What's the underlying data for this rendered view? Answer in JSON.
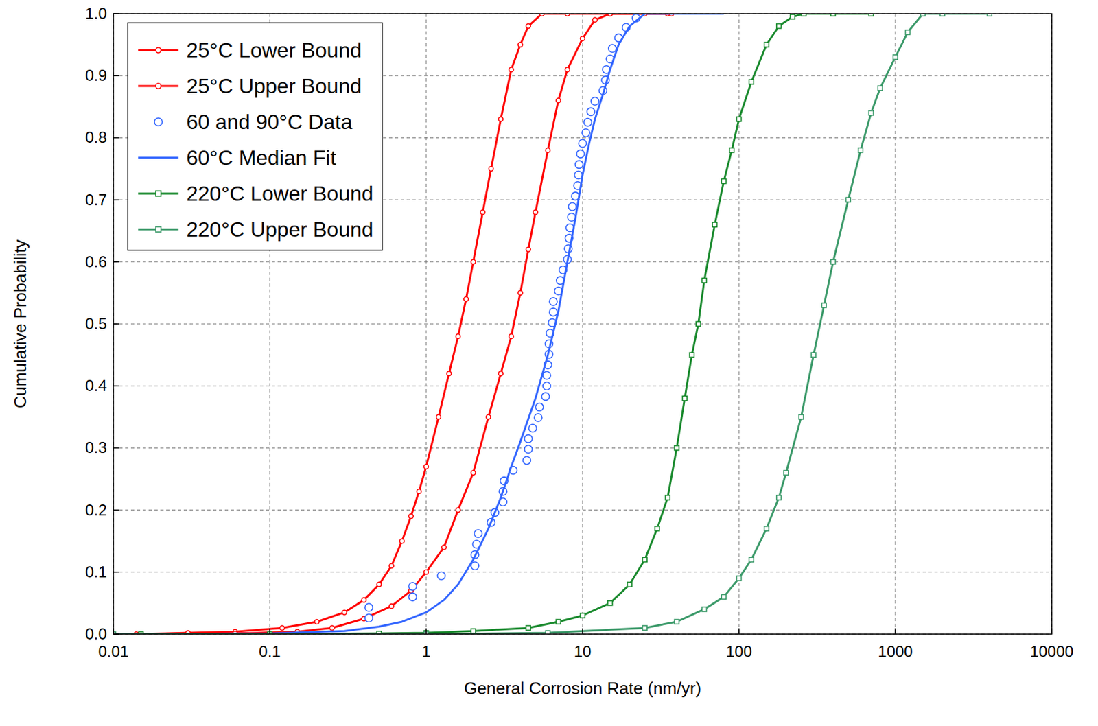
{
  "chart_data": {
    "type": "line",
    "x_label": "General Corrosion Rate (nm/yr)",
    "y_label": "Cumulative Probability",
    "log": "x",
    "grid": true,
    "legend": "top-left",
    "xlim": [
      0.01,
      10000
    ],
    "ylim": [
      0,
      1
    ],
    "xticks": [
      0.01,
      0.1,
      1,
      10,
      100,
      1000,
      10000
    ],
    "yticks": [
      {
        "value": 0,
        "label": "0.0"
      },
      0.1,
      0.2,
      0.3,
      0.4,
      0.5,
      0.6,
      0.7,
      0.8,
      0.9,
      {
        "value": 1,
        "label": "1.0"
      }
    ],
    "series": [
      {
        "name": "25°C Lower Bound",
        "type": "line",
        "color": "#ff0000",
        "marker": "circle",
        "line_style": "solid",
        "x": [
          0.014,
          0.03,
          0.06,
          0.12,
          0.2,
          0.3,
          0.4,
          0.5,
          0.6,
          0.7,
          0.8,
          0.9,
          1.0,
          1.2,
          1.4,
          1.6,
          1.8,
          2.0,
          2.3,
          2.6,
          3.0,
          3.5,
          4.0,
          4.5,
          5.5,
          8,
          15,
          35
        ],
        "values": [
          0,
          0.002,
          0.004,
          0.01,
          0.02,
          0.035,
          0.055,
          0.08,
          0.11,
          0.15,
          0.19,
          0.23,
          0.27,
          0.35,
          0.42,
          0.48,
          0.54,
          0.6,
          0.68,
          0.75,
          0.83,
          0.91,
          0.95,
          0.98,
          1.0,
          1.0,
          1.0,
          1.0
        ]
      },
      {
        "name": "25°C Upper Bound",
        "type": "line",
        "color": "#ff0000",
        "marker": "circle",
        "line_style": "solid",
        "x": [
          0.06,
          0.15,
          0.25,
          0.4,
          0.6,
          0.8,
          1.0,
          1.3,
          1.6,
          2.0,
          2.5,
          3.0,
          3.5,
          4.0,
          4.5,
          5.0,
          6.0,
          7.0,
          8.0,
          10,
          12,
          15,
          25,
          37
        ],
        "values": [
          0.001,
          0.004,
          0.01,
          0.025,
          0.045,
          0.07,
          0.1,
          0.14,
          0.2,
          0.26,
          0.35,
          0.42,
          0.48,
          0.55,
          0.62,
          0.68,
          0.78,
          0.86,
          0.91,
          0.96,
          0.99,
          1.0,
          1.0,
          1.0
        ]
      },
      {
        "name": "60 and 90°C Data",
        "type": "scatter",
        "color": "#3366ff",
        "marker": "circle",
        "line_style": "none",
        "x": [
          0.43,
          0.43,
          0.82,
          0.82,
          1.25,
          2.05,
          2.05,
          2.1,
          2.15,
          2.6,
          2.75,
          3.1,
          3.1,
          3.15,
          3.6,
          4.4,
          4.5,
          4.5,
          4.8,
          5.2,
          5.3,
          5.8,
          5.9,
          5.9,
          6.0,
          6.1,
          6.1,
          6.2,
          6.4,
          6.5,
          6.5,
          7.0,
          7.2,
          7.5,
          8.0,
          8.1,
          8.2,
          8.3,
          8.5,
          8.6,
          9.0,
          9.3,
          9.4,
          9.5,
          9.7,
          10.0,
          10.5,
          10.8,
          11.3,
          12,
          13.5,
          14,
          14.2,
          15,
          15.5,
          17,
          19,
          22
        ],
        "values": [
          0.026,
          0.043,
          0.06,
          0.077,
          0.094,
          0.11,
          0.128,
          0.145,
          0.162,
          0.18,
          0.196,
          0.213,
          0.23,
          0.247,
          0.264,
          0.28,
          0.298,
          0.315,
          0.332,
          0.349,
          0.366,
          0.383,
          0.4,
          0.417,
          0.434,
          0.451,
          0.468,
          0.485,
          0.502,
          0.519,
          0.536,
          0.553,
          0.57,
          0.587,
          0.604,
          0.621,
          0.638,
          0.655,
          0.672,
          0.689,
          0.706,
          0.723,
          0.74,
          0.757,
          0.774,
          0.791,
          0.808,
          0.825,
          0.842,
          0.859,
          0.876,
          0.893,
          0.91,
          0.927,
          0.944,
          0.961,
          0.978,
          0.993
        ]
      },
      {
        "name": "60°C Median Fit",
        "type": "line",
        "color": "#3366ff",
        "marker": "none",
        "line_style": "solid",
        "x": [
          0.01,
          0.1,
          0.3,
          0.5,
          0.7,
          1.0,
          1.3,
          1.6,
          2.0,
          2.5,
          3.0,
          3.5,
          4.0,
          5.0,
          6.0,
          7.0,
          8.0,
          9.0,
          10,
          11,
          12,
          13.5,
          15,
          17,
          20,
          25,
          40,
          80
        ],
        "values": [
          0,
          0.001,
          0.005,
          0.012,
          0.02,
          0.035,
          0.055,
          0.08,
          0.12,
          0.17,
          0.22,
          0.27,
          0.31,
          0.38,
          0.45,
          0.52,
          0.6,
          0.67,
          0.74,
          0.79,
          0.83,
          0.87,
          0.91,
          0.95,
          0.98,
          1.0,
          1.0,
          1.0
        ]
      },
      {
        "name": "220°C Lower Bound",
        "type": "line",
        "color": "#1a8a2e",
        "marker": "square",
        "line_style": "solid",
        "x": [
          0.015,
          0.1,
          0.5,
          1,
          2,
          4.5,
          7,
          10,
          15,
          20,
          25,
          30,
          35,
          40,
          45,
          50,
          55,
          60,
          70,
          80,
          90,
          100,
          120,
          150,
          180,
          220,
          260,
          400,
          700
        ],
        "values": [
          0,
          0,
          0.001,
          0.002,
          0.005,
          0.01,
          0.02,
          0.03,
          0.05,
          0.08,
          0.12,
          0.17,
          0.22,
          0.3,
          0.38,
          0.45,
          0.5,
          0.57,
          0.66,
          0.73,
          0.78,
          0.83,
          0.89,
          0.95,
          0.98,
          0.995,
          1.0,
          1.0,
          1.0
        ]
      },
      {
        "name": "220°C Upper Bound",
        "type": "line",
        "color": "#3c9a6a",
        "marker": "square",
        "line_style": "solid",
        "x": [
          0.01,
          1,
          6,
          25,
          40,
          60,
          80,
          100,
          120,
          150,
          180,
          200,
          250,
          300,
          350,
          400,
          500,
          600,
          700,
          800,
          1000,
          1200,
          1500,
          2000,
          4000
        ],
        "values": [
          0,
          0,
          0.002,
          0.01,
          0.02,
          0.04,
          0.06,
          0.09,
          0.12,
          0.17,
          0.22,
          0.26,
          0.35,
          0.45,
          0.53,
          0.6,
          0.7,
          0.78,
          0.84,
          0.88,
          0.93,
          0.97,
          1.0,
          1.0,
          1.0
        ]
      }
    ]
  }
}
